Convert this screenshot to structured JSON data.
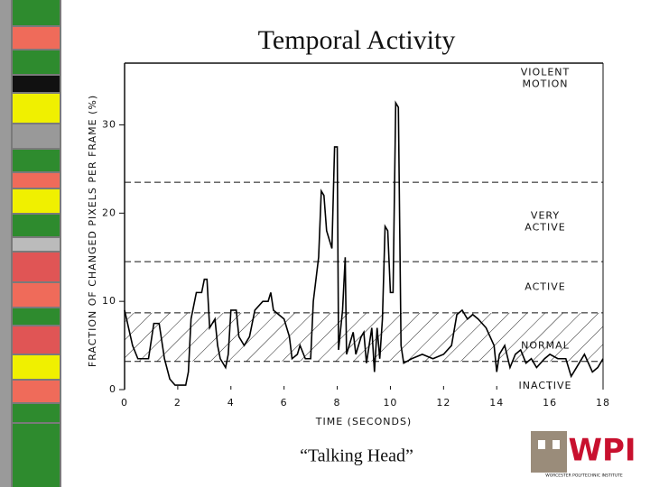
{
  "title": "Temporal Activity",
  "caption": "“Talking Head”",
  "logo": {
    "text": "WPI",
    "subtitle": "WORCESTER POLYTECHNIC INSTITUTE"
  },
  "chart_data": {
    "type": "line",
    "x_label": "TIME (SECONDS)",
    "y_label": "FRACTION OF CHANGED PIXELS PER FRAME (%)",
    "xlim": [
      0,
      18
    ],
    "xticks": [
      0,
      2,
      4,
      6,
      8,
      10,
      12,
      14,
      16,
      18
    ],
    "ylim": [
      0,
      37
    ],
    "yticks": [
      0,
      10,
      20,
      30
    ],
    "thresholds": [
      3.2,
      8.7,
      14.5,
      23.5
    ],
    "annotations": [
      "INACTIVE",
      "NORMAL",
      "ACTIVE",
      "VERY ACTIVE",
      "VIOLENT MOTION"
    ],
    "series": [
      {
        "color": "#000000",
        "x": [
          0,
          0.3,
          0.5,
          0.9,
          1.1,
          1.3,
          1.5,
          1.7,
          1.9,
          2.3,
          2.4,
          2.5,
          2.7,
          2.9,
          3.0,
          3.1,
          3.2,
          3.4,
          3.5,
          3.6,
          3.8,
          3.9,
          4.0,
          4.2,
          4.3,
          4.5,
          4.7,
          4.9,
          5.2,
          5.4,
          5.5,
          5.6,
          5.8,
          6.0,
          6.2,
          6.3,
          6.5,
          6.6,
          6.8,
          7.0,
          7.1,
          7.3,
          7.4,
          7.5,
          7.6,
          7.8,
          7.9,
          8.0,
          8.05,
          8.2,
          8.3,
          8.35,
          8.6,
          8.7,
          8.9,
          9.0,
          9.1,
          9.3,
          9.4,
          9.5,
          9.6,
          9.7,
          9.8,
          9.9,
          10.0,
          10.1,
          10.2,
          10.3,
          10.4,
          10.5,
          10.8,
          11.2,
          11.6,
          12.0,
          12.3,
          12.5,
          12.7,
          12.9,
          13.1,
          13.3,
          13.6,
          13.9,
          14.0,
          14.1,
          14.3,
          14.5,
          14.7,
          14.9,
          15.1,
          15.3,
          15.5,
          15.8,
          16.0,
          16.3,
          16.6,
          16.8,
          17.0,
          17.3,
          17.6,
          17.8,
          18.0
        ],
        "values": [
          9,
          5,
          3.5,
          3.5,
          7.5,
          7.5,
          3.5,
          1.2,
          0.5,
          0.5,
          2,
          8,
          11,
          11,
          12.5,
          12.5,
          7,
          8,
          5,
          3.5,
          2.5,
          4,
          9,
          9,
          6,
          5,
          6,
          9,
          10,
          10,
          11,
          9,
          8.5,
          8,
          6,
          3.5,
          4,
          5,
          3.5,
          3.5,
          10,
          15,
          22.5,
          22,
          18,
          16,
          27.5,
          27.5,
          4.5,
          9,
          15,
          4,
          6.5,
          4,
          6,
          6.5,
          3,
          7,
          2,
          7,
          3.5,
          8,
          18.5,
          18,
          11,
          11,
          32.5,
          32,
          5,
          3,
          3.5,
          4,
          3.5,
          4,
          5,
          8.5,
          9,
          8,
          8.5,
          8,
          7,
          5,
          2,
          4,
          5,
          2.5,
          4,
          4.5,
          3,
          3.5,
          2.5,
          3.5,
          4,
          3.5,
          3.5,
          1.5,
          2.5,
          4,
          2,
          2.5,
          3.5
        ]
      }
    ]
  }
}
